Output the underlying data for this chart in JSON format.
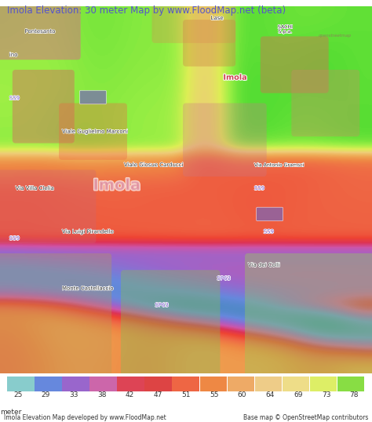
{
  "title": "Imola Elevation: 30 meter Map by www.FloodMap.net (beta)",
  "title_color": "#5555cc",
  "title_bg": "#f0f0f0",
  "colorbar_values": [
    25,
    29,
    33,
    38,
    42,
    47,
    51,
    55,
    60,
    64,
    69,
    73,
    78
  ],
  "colorbar_colors": [
    "#88cccc",
    "#6688dd",
    "#9966cc",
    "#cc66aa",
    "#dd4455",
    "#dd4444",
    "#ee6644",
    "#ee8844",
    "#eeaa66",
    "#eecc88",
    "#eedd88",
    "#ddee66",
    "#88dd44"
  ],
  "footer_left": "Imola Elevation Map developed by www.FloodMap.net",
  "footer_right": "Base map © OpenStreetMap contributors",
  "map_bg_colors": {
    "low_zone": "#cc6677",
    "mid_zone": "#dd8899",
    "high_zone": "#bb77aa"
  }
}
